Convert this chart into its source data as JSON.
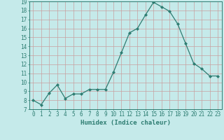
{
  "x": [
    0,
    1,
    2,
    3,
    4,
    5,
    6,
    7,
    8,
    9,
    10,
    11,
    12,
    13,
    14,
    15,
    16,
    17,
    18,
    19,
    20,
    21,
    22,
    23
  ],
  "y": [
    8.0,
    7.5,
    8.8,
    9.7,
    8.2,
    8.7,
    8.7,
    9.2,
    9.2,
    9.2,
    11.1,
    13.3,
    15.5,
    16.0,
    17.5,
    18.9,
    18.4,
    17.9,
    16.5,
    14.3,
    12.1,
    11.5,
    10.7,
    10.7
  ],
  "xlabel": "Humidex (Indice chaleur)",
  "ylim": [
    7,
    19
  ],
  "xlim_min": -0.5,
  "xlim_max": 23.5,
  "yticks": [
    7,
    8,
    9,
    10,
    11,
    12,
    13,
    14,
    15,
    16,
    17,
    18,
    19
  ],
  "xticks": [
    0,
    1,
    2,
    3,
    4,
    5,
    6,
    7,
    8,
    9,
    10,
    11,
    12,
    13,
    14,
    15,
    16,
    17,
    18,
    19,
    20,
    21,
    22,
    23
  ],
  "line_color": "#2e7d72",
  "marker_color": "#2e7d72",
  "bg_color": "#c5eaea",
  "grid_color": "#c8a0a0",
  "label_color": "#2e7d72",
  "tick_fontsize": 5.5,
  "xlabel_fontsize": 6.5
}
